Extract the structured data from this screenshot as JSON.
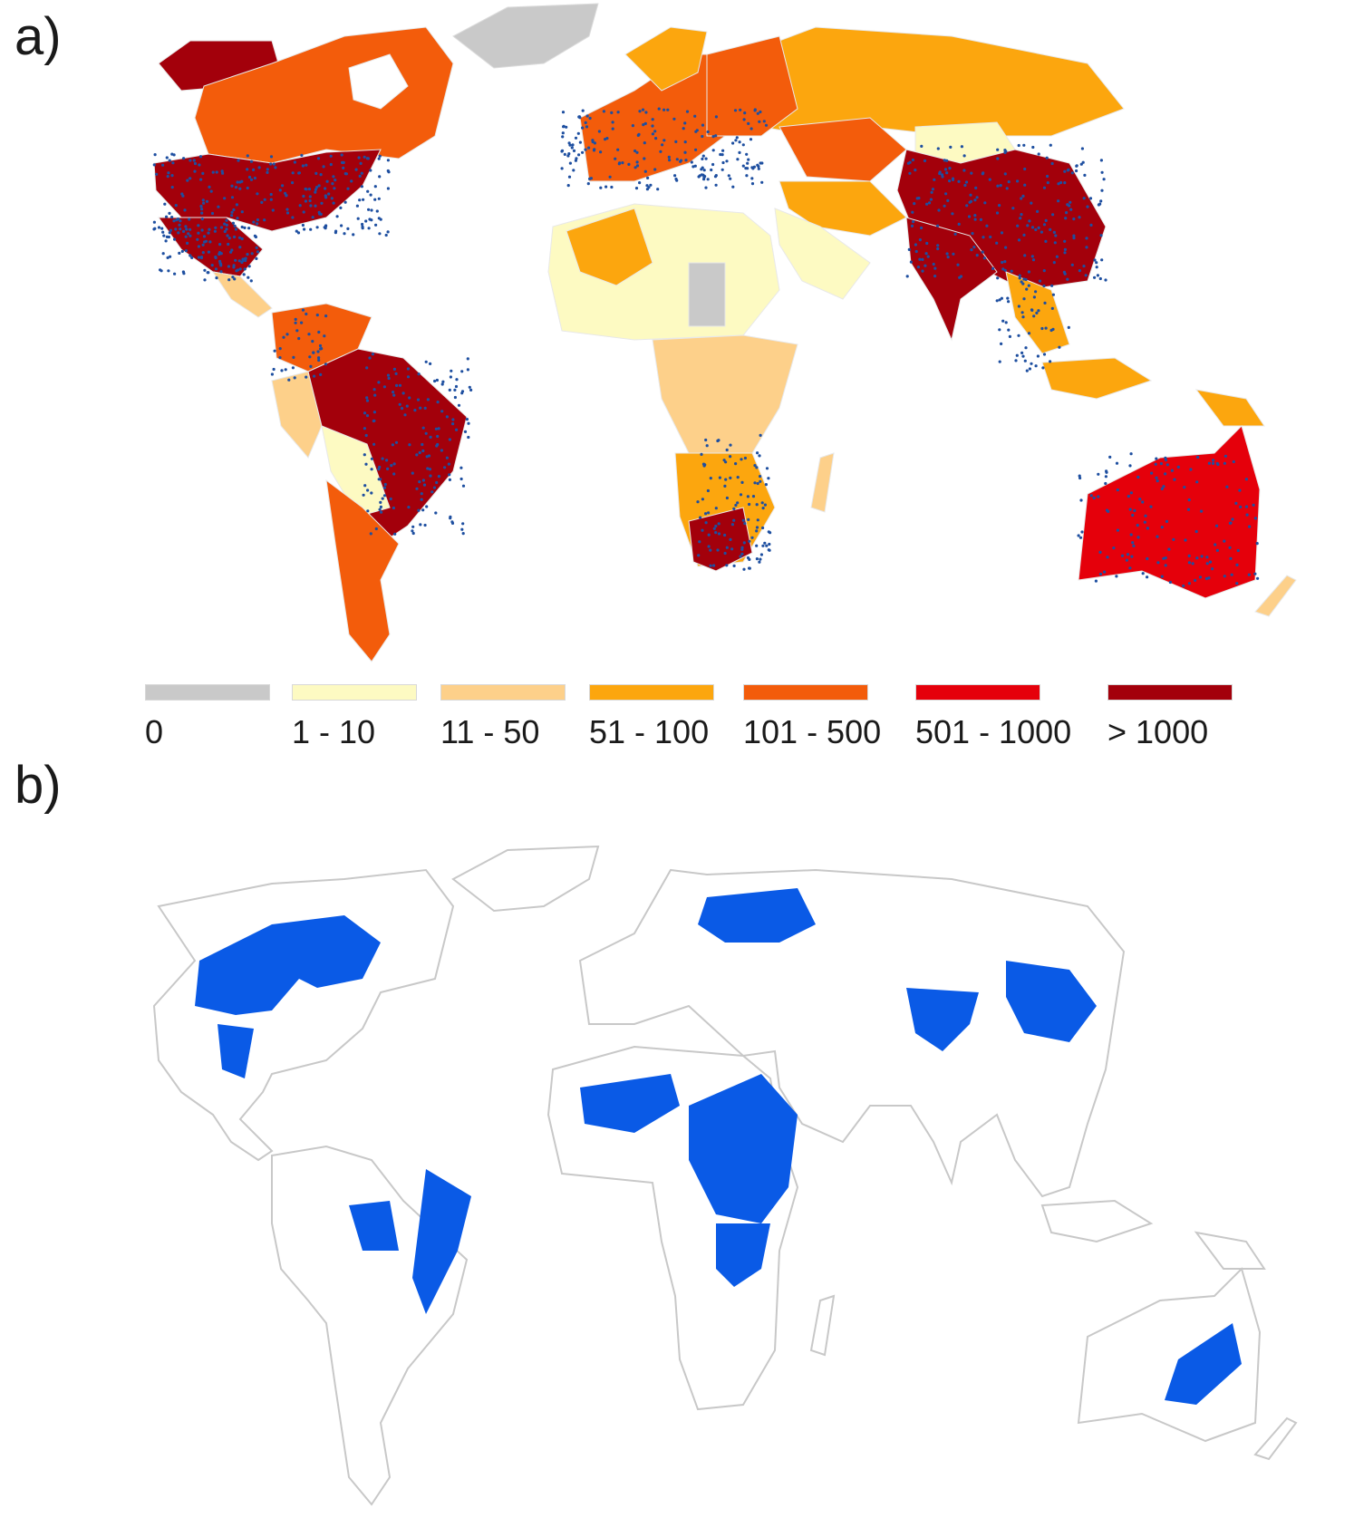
{
  "panels": {
    "a": {
      "label": "a)"
    },
    "b": {
      "label": "b)"
    }
  },
  "colors": {
    "land_outline": "#c8c8c8",
    "points": "#1e4fa0",
    "suitable_area": "#0a5ae6",
    "class_0": "#c9c9c9",
    "class_1_10": "#fdfac2",
    "class_11_50": "#fdd08a",
    "class_51_100": "#fca60e",
    "class_101_500": "#f35c0b",
    "class_501_1000": "#e5000b",
    "class_gt_1000": "#a3000b"
  },
  "legend": {
    "items": [
      {
        "label": "0",
        "color": "#c9c9c9"
      },
      {
        "label": "1 - 10",
        "color": "#fdfac2"
      },
      {
        "label": "11 - 50",
        "color": "#fdd08a"
      },
      {
        "label": "51 - 100",
        "color": "#fca60e"
      },
      {
        "label": "101 - 500",
        "color": "#f35c0b"
      },
      {
        "label": "501 - 1000",
        "color": "#e5000b"
      },
      {
        "label": "> 1000",
        "color": "#a3000b"
      }
    ]
  }
}
